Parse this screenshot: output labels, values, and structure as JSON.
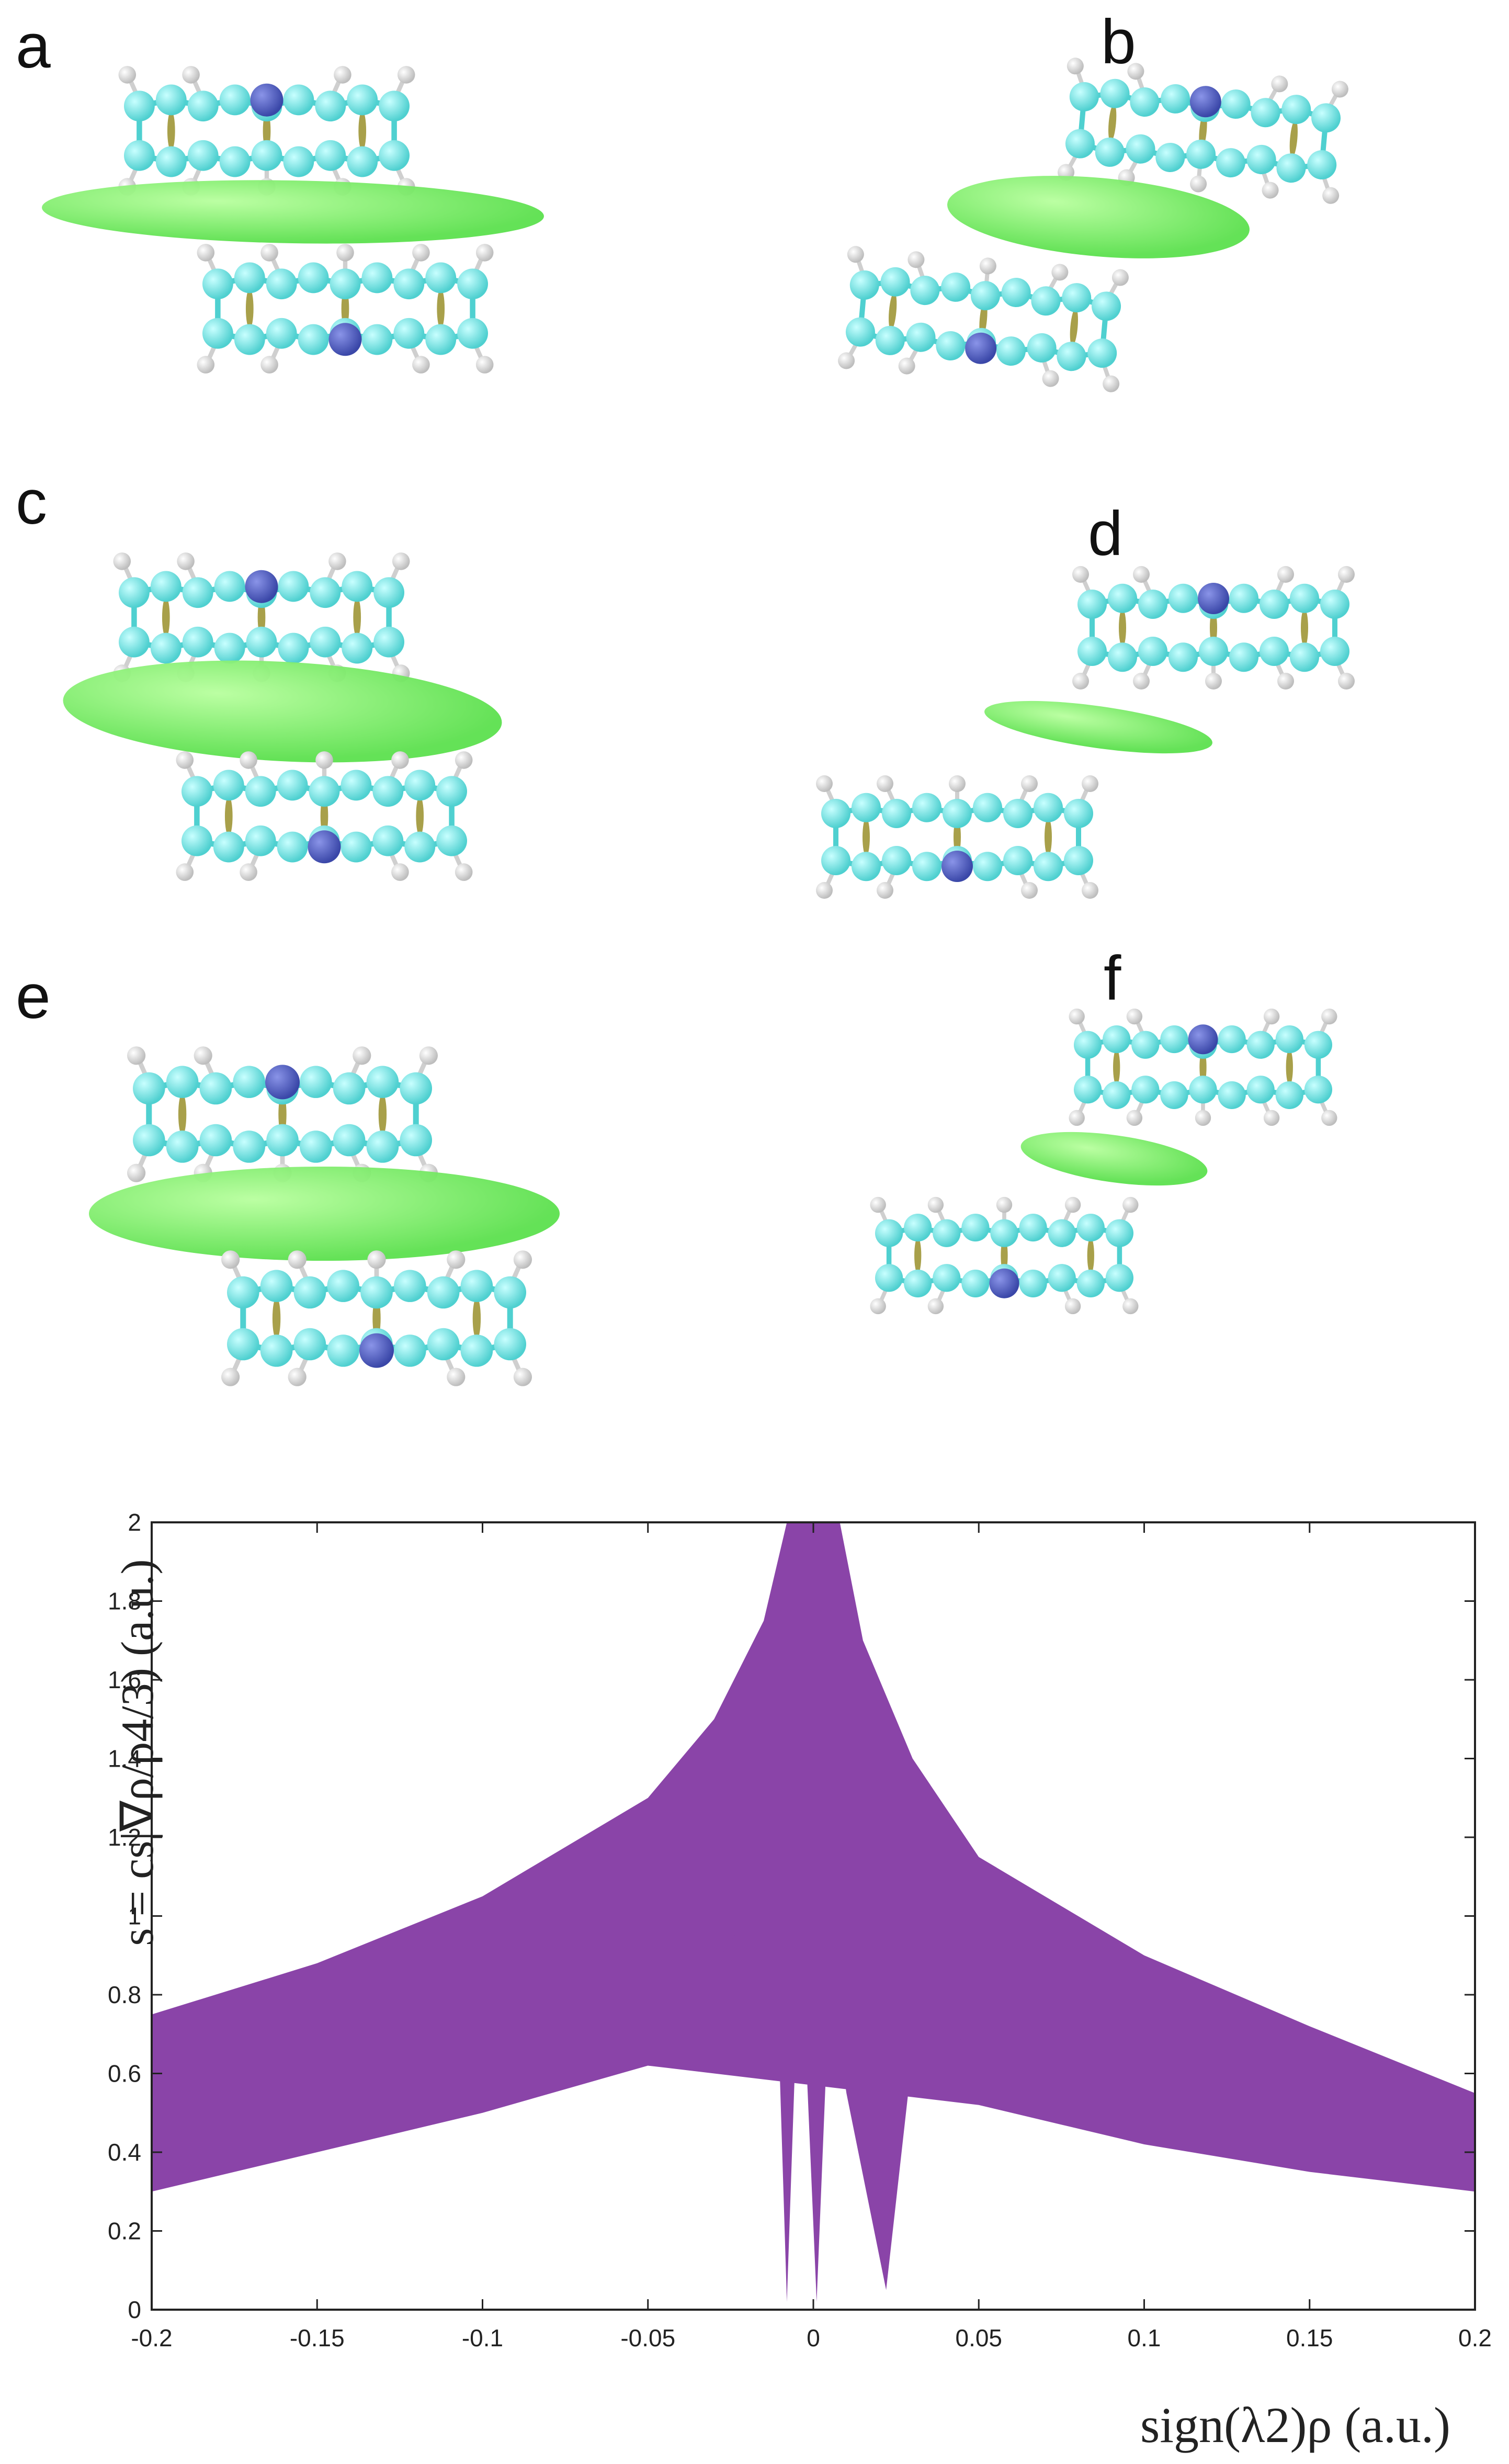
{
  "panels": [
    {
      "label": "a"
    },
    {
      "label": "b"
    },
    {
      "label": "c"
    },
    {
      "label": "d"
    },
    {
      "label": "e"
    },
    {
      "label": "f"
    }
  ],
  "colors": {
    "carbon": "#4fd0d0",
    "nitrogen": "#3a47a8",
    "hydrogen": "#e8e8e8",
    "isosurface": "#5ce04e",
    "ring_critical": "#a8a04a",
    "scatter": "#8a44a8"
  },
  "chart_data": {
    "type": "scatter",
    "xlabel": "sign(λ2)ρ (a.u.)",
    "ylabel": "s = cs|∇ρ/ρ4/3) (a.u.)",
    "xlim": [
      -0.2,
      0.2
    ],
    "ylim": [
      0,
      2
    ],
    "x_ticks": [
      -0.2,
      -0.15,
      -0.1,
      -0.05,
      0,
      0.05,
      0.1,
      0.15,
      0.2
    ],
    "x_tick_labels": [
      "-0.2",
      "-0.15",
      "-0.1",
      "-0.05",
      "0",
      "0.05",
      "0.1",
      "0.15",
      "0.2"
    ],
    "y_ticks": [
      0,
      0.2,
      0.4,
      0.6,
      0.8,
      1,
      1.2,
      1.4,
      1.6,
      1.8,
      2
    ],
    "y_tick_labels": [
      "0",
      "0.2",
      "0.4",
      "0.6",
      "0.8",
      "1",
      "1.2",
      "1.4",
      "1.6",
      "1.8",
      "2"
    ],
    "grid": false,
    "series": [
      {
        "upper_envelope": [
          [
            -0.2,
            0.75
          ],
          [
            -0.15,
            0.84
          ],
          [
            -0.1,
            0.92
          ],
          [
            -0.05,
            1.0
          ],
          [
            -0.02,
            1.06
          ],
          [
            -0.012,
            1.1
          ],
          [
            -0.008,
            1.04
          ],
          [
            -0.005,
            0.8
          ],
          [
            -0.004,
            0.02
          ],
          [
            0.004,
            0.02
          ],
          [
            0.005,
            0.8
          ],
          [
            0.01,
            0.62
          ],
          [
            0.02,
            0.28
          ],
          [
            0.025,
            0.6
          ],
          [
            0.04,
            0.72
          ],
          [
            0.05,
            0.7
          ],
          [
            0.1,
            0.62
          ],
          [
            0.15,
            0.54
          ],
          [
            0.2,
            0.45
          ]
        ],
        "outer_envelope": [
          [
            -0.2,
            0.75
          ],
          [
            -0.15,
            0.88
          ],
          [
            -0.1,
            1.05
          ],
          [
            -0.05,
            1.3
          ],
          [
            -0.03,
            1.5
          ],
          [
            -0.015,
            1.75
          ],
          [
            -0.008,
            2.0
          ],
          [
            0.008,
            2.0
          ],
          [
            0.015,
            1.7
          ],
          [
            0.03,
            1.4
          ],
          [
            0.05,
            1.15
          ],
          [
            0.1,
            0.9
          ],
          [
            0.15,
            0.72
          ],
          [
            0.2,
            0.55
          ]
        ],
        "lower_envelope": [
          [
            -0.2,
            0.3
          ],
          [
            -0.15,
            0.4
          ],
          [
            -0.1,
            0.5
          ],
          [
            -0.05,
            0.62
          ],
          [
            0.05,
            0.52
          ],
          [
            0.1,
            0.42
          ],
          [
            0.15,
            0.35
          ],
          [
            0.2,
            0.3
          ]
        ]
      }
    ]
  }
}
